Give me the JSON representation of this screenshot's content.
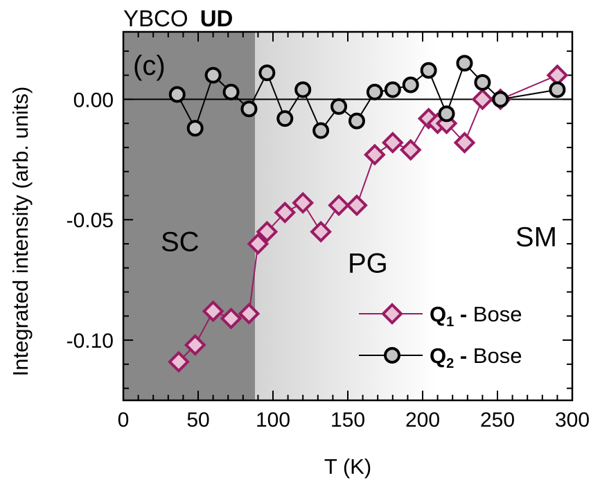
{
  "chart_data": {
    "type": "line",
    "title_plain": "YBCO",
    "title_bold": "UD",
    "panel_label": "(c)",
    "xlabel": "T (K)",
    "ylabel": "Integrated intensity (arb. units)",
    "xlim": [
      0,
      300
    ],
    "ylim": [
      -0.125,
      0.028
    ],
    "x_ticks": [
      0,
      50,
      100,
      150,
      200,
      250,
      300
    ],
    "x_tick_labels": [
      "0",
      "50",
      "100",
      "150",
      "200",
      "250",
      "300"
    ],
    "y_ticks": [
      0.0,
      -0.05,
      -0.1
    ],
    "y_tick_labels": [
      "0.00",
      "-0.05",
      "-0.10"
    ],
    "grid": false,
    "legend_position": "bottom-right",
    "zero_line": true,
    "regions": [
      {
        "label": "SC",
        "x_start": 0,
        "x_end": 88,
        "color": "#888888",
        "label_x": 25,
        "label_y": -0.063
      },
      {
        "label": "PG",
        "x_start": 88,
        "x_end": 210,
        "color": "#c8c8c8",
        "label_x": 150,
        "label_y": -0.072
      },
      {
        "label": "SM",
        "x_start": 210,
        "x_end": 300,
        "color": "#ffffff",
        "label_x": 262,
        "label_y": -0.061
      }
    ],
    "series": [
      {
        "legend_main": "Q",
        "legend_sub": "1",
        "legend_suffix": " - Bose",
        "marker": "diamond",
        "color": "#9b1b63",
        "fill": "#e9c2d6",
        "x": [
          37,
          48,
          60,
          72,
          84,
          90,
          96,
          108,
          120,
          132,
          144,
          156,
          168,
          180,
          192,
          204,
          210,
          216,
          228,
          240,
          252,
          290
        ],
        "values": [
          -0.109,
          -0.102,
          -0.088,
          -0.091,
          -0.089,
          -0.06,
          -0.055,
          -0.047,
          -0.043,
          -0.055,
          -0.044,
          -0.044,
          -0.023,
          -0.018,
          -0.021,
          -0.008,
          -0.01,
          -0.01,
          -0.018,
          0.0,
          0.0,
          0.01
        ]
      },
      {
        "legend_main": "Q",
        "legend_sub": "2",
        "legend_suffix": " - Bose",
        "marker": "circle",
        "color": "#000000",
        "fill": "#c4c4c4",
        "x": [
          36,
          48,
          60,
          72,
          84,
          96,
          108,
          120,
          132,
          144,
          156,
          168,
          180,
          192,
          204,
          216,
          228,
          240,
          252,
          290
        ],
        "values": [
          0.002,
          -0.012,
          0.01,
          0.003,
          -0.004,
          0.011,
          -0.008,
          0.004,
          -0.013,
          -0.003,
          -0.009,
          0.003,
          0.004,
          0.006,
          0.012,
          -0.006,
          0.015,
          0.007,
          0.0,
          0.004
        ]
      }
    ]
  },
  "colors": {
    "axis": "#000000",
    "background": "#ffffff"
  }
}
